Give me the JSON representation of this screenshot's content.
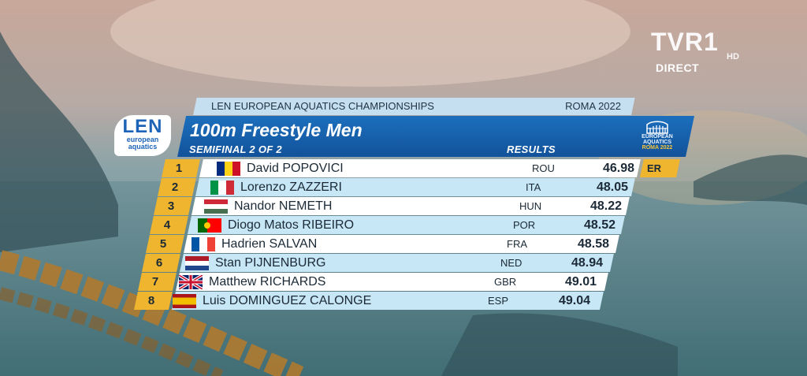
{
  "broadcaster": {
    "logo_text": "TVR1",
    "hd_label": "HD",
    "live_label": "DIRECT"
  },
  "federation": {
    "line1": "LEN",
    "line2": "european",
    "line3": "aquatics"
  },
  "event_strip": {
    "championship": "LEN EUROPEAN AQUATICS CHAMPIONSHIPS",
    "venue": "ROMA 2022"
  },
  "header": {
    "title": "100m Freestyle Men",
    "subtitle": "SEMIFINAL 2 OF 2",
    "results_label": "RESULTS"
  },
  "badge": {
    "line1": "EUROPEAN",
    "line2": "AQUATICS",
    "line3": "ROMA 2022"
  },
  "results": [
    {
      "rank": "1",
      "name": "David POPOVICI",
      "nat": "ROU",
      "time": "46.98",
      "record": "ER",
      "flag": "romania-flag"
    },
    {
      "rank": "2",
      "name": "Lorenzo ZAZZERI",
      "nat": "ITA",
      "time": "48.05",
      "record": "",
      "flag": "italy-flag"
    },
    {
      "rank": "3",
      "name": "Nandor NEMETH",
      "nat": "HUN",
      "time": "48.22",
      "record": "",
      "flag": "hungary-flag"
    },
    {
      "rank": "4",
      "name": "Diogo Matos RIBEIRO",
      "nat": "POR",
      "time": "48.52",
      "record": "",
      "flag": "portugal-flag"
    },
    {
      "rank": "5",
      "name": "Hadrien SALVAN",
      "nat": "FRA",
      "time": "48.58",
      "record": "",
      "flag": "france-flag"
    },
    {
      "rank": "6",
      "name": "Stan PIJNENBURG",
      "nat": "NED",
      "time": "48.94",
      "record": "",
      "flag": "netherlands-flag"
    },
    {
      "rank": "7",
      "name": "Matthew RICHARDS",
      "nat": "GBR",
      "time": "49.01",
      "record": "",
      "flag": "great-britain-flag"
    },
    {
      "rank": "8",
      "name": "Luis DOMINGUEZ CALONGE",
      "nat": "ESP",
      "time": "49.04",
      "record": "",
      "flag": "spain-flag"
    }
  ],
  "colors": {
    "accent_gold": "#f0b52e",
    "header_blue": "#1c6fbd",
    "row_white": "#ffffff",
    "row_blue": "#c7e6f6"
  }
}
